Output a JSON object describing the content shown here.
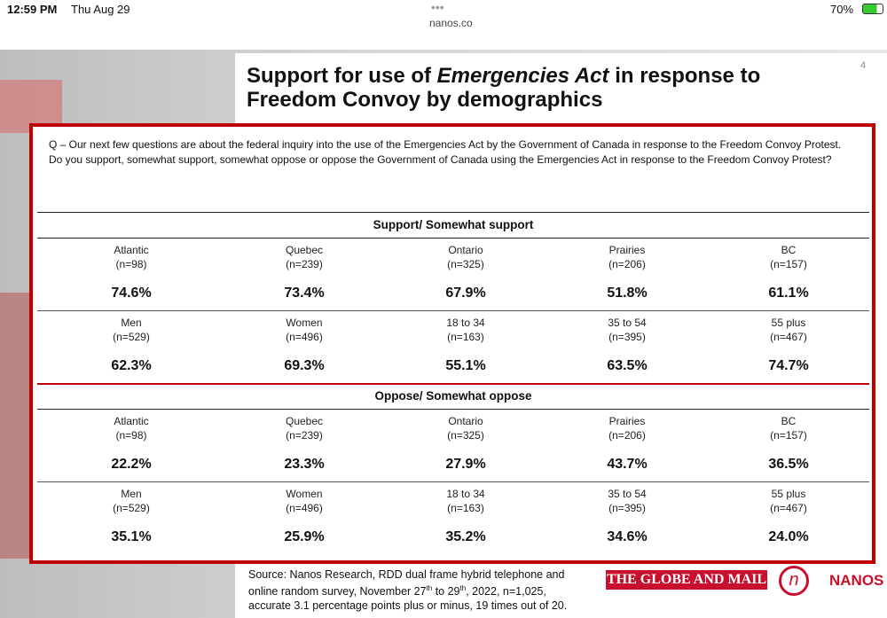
{
  "status_bar": {
    "time": "12:59 PM",
    "date": "Thu Aug 29",
    "url": "nanos.co",
    "battery": "70%"
  },
  "slide": {
    "page_number": "4",
    "title": {
      "before": "Support for use of ",
      "italic": "Emergencies Act",
      "after": " in response to Freedom Convoy by demographics"
    },
    "question": "Q – Our next few questions are about the federal inquiry into the use of the Emergencies Act by the Government of Canada in response to the Freedom Convoy Protest. Do you support, somewhat support, somewhat oppose or oppose the Government of Canada using the Emergencies Act in response to the Freedom Convoy Protest?",
    "sections": [
      {
        "heading": "Support/ Somewhat support",
        "rows": [
          [
            {
              "label": "Atlantic",
              "n": "(n=98)",
              "value": "74.6%"
            },
            {
              "label": "Quebec",
              "n": "(n=239)",
              "value": "73.4%"
            },
            {
              "label": "Ontario",
              "n": "(n=325)",
              "value": "67.9%"
            },
            {
              "label": "Prairies",
              "n": "(n=206)",
              "value": "51.8%"
            },
            {
              "label": "BC",
              "n": "(n=157)",
              "value": "61.1%"
            }
          ],
          [
            {
              "label": "Men",
              "n": "(n=529)",
              "value": "62.3%"
            },
            {
              "label": "Women",
              "n": "(n=496)",
              "value": "69.3%"
            },
            {
              "label": "18 to 34",
              "n": "(n=163)",
              "value": "55.1%"
            },
            {
              "label": "35 to 54",
              "n": "(n=395)",
              "value": "63.5%"
            },
            {
              "label": "55 plus",
              "n": "(n=467)",
              "value": "74.7%"
            }
          ]
        ]
      },
      {
        "heading": "Oppose/ Somewhat oppose",
        "rows": [
          [
            {
              "label": "Atlantic",
              "n": "(n=98)",
              "value": "22.2%"
            },
            {
              "label": "Quebec",
              "n": "(n=239)",
              "value": "23.3%"
            },
            {
              "label": "Ontario",
              "n": "(n=325)",
              "value": "27.9%"
            },
            {
              "label": "Prairies",
              "n": "(n=206)",
              "value": "43.7%"
            },
            {
              "label": "BC",
              "n": "(n=157)",
              "value": "36.5%"
            }
          ],
          [
            {
              "label": "Men",
              "n": "(n=529)",
              "value": "35.1%"
            },
            {
              "label": "Women",
              "n": "(n=496)",
              "value": "25.9%"
            },
            {
              "label": "18 to 34",
              "n": "(n=163)",
              "value": "35.2%"
            },
            {
              "label": "35 to 54",
              "n": "(n=395)",
              "value": "34.6%"
            },
            {
              "label": "55 plus",
              "n": "(n=467)",
              "value": "24.0%"
            }
          ]
        ]
      }
    ],
    "source": {
      "part1": "Source: Nanos Research, RDD dual frame hybrid  telephone and online random survey, November 27",
      "sup1": "th",
      "part2": " to 29",
      "sup2": "th",
      "part3": ",  2022, n=1,025, accurate 3.1 percentage points plus or minus, 19 times out of 20."
    },
    "logos": {
      "globe": "THE GLOBE AND MAIL",
      "nanos": "NANOS"
    }
  }
}
